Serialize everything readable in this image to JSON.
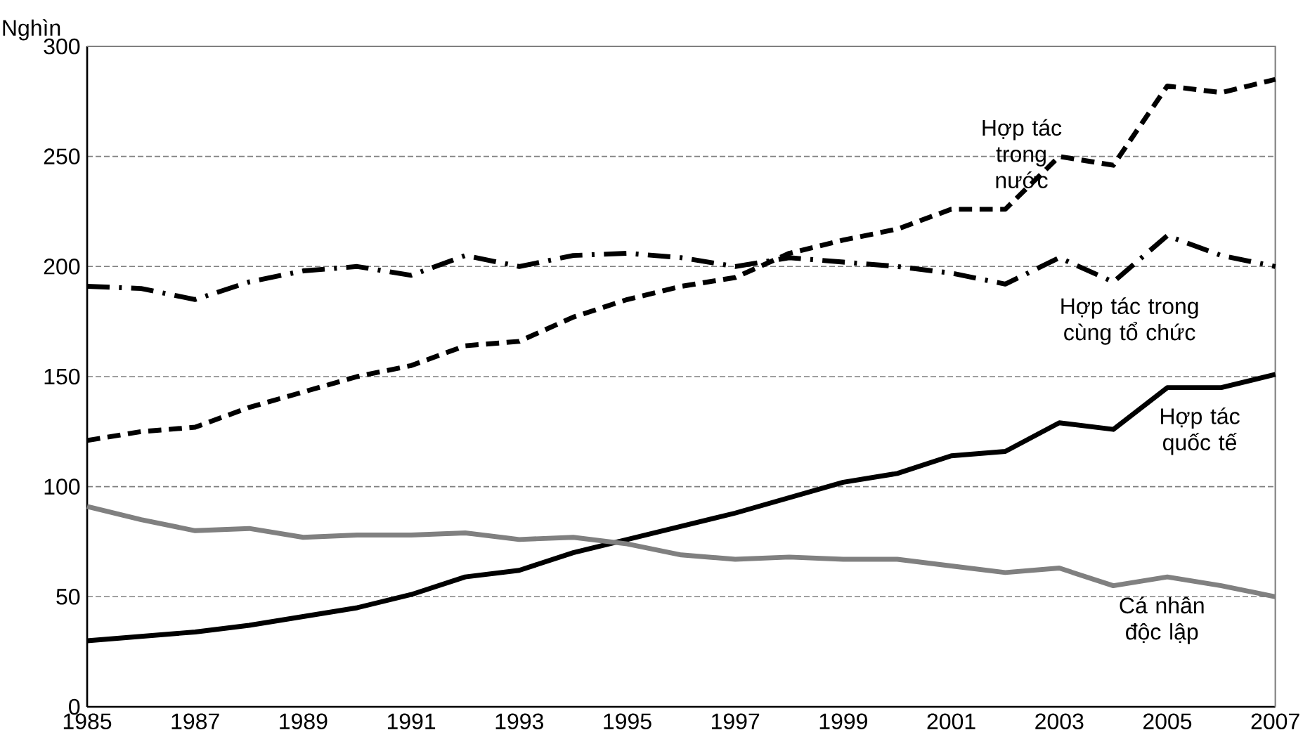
{
  "chart_data": {
    "type": "line",
    "ylabel": "Nghìn",
    "x": [
      1985,
      1986,
      1987,
      1988,
      1989,
      1990,
      1991,
      1992,
      1993,
      1994,
      1995,
      1996,
      1997,
      1998,
      1999,
      2000,
      2001,
      2002,
      2003,
      2004,
      2005,
      2006,
      2007
    ],
    "series": [
      {
        "name": "Hợp tác trong nước",
        "color": "#000000",
        "line_style": "dashed",
        "values": [
          121,
          125,
          127,
          136,
          143,
          150,
          155,
          164,
          166,
          177,
          185,
          191,
          195,
          206,
          212,
          217,
          226,
          226,
          250,
          246,
          282,
          279,
          285
        ]
      },
      {
        "name": "Hợp tác trong cùng tổ chức",
        "color": "#000000",
        "line_style": "dashdot",
        "values": [
          191,
          190,
          185,
          193,
          198,
          200,
          196,
          205,
          200,
          205,
          206,
          204,
          200,
          204,
          202,
          200,
          197,
          192,
          204,
          193,
          214,
          205,
          200
        ]
      },
      {
        "name": "Hợp tác quốc tế",
        "color": "#000000",
        "line_style": "solid",
        "values": [
          30,
          32,
          34,
          37,
          41,
          45,
          51,
          59,
          62,
          70,
          76,
          82,
          88,
          95,
          102,
          106,
          114,
          116,
          129,
          126,
          145,
          145,
          151
        ]
      },
      {
        "name": "Cá nhân độc lập",
        "color": "#808080",
        "line_style": "solid",
        "values": [
          91,
          85,
          80,
          81,
          77,
          78,
          78,
          79,
          76,
          77,
          74,
          69,
          67,
          68,
          67,
          67,
          64,
          61,
          63,
          55,
          59,
          55,
          50
        ]
      }
    ],
    "xlim": [
      1985,
      2007
    ],
    "xticks": [
      1985,
      1987,
      1989,
      1991,
      1993,
      1995,
      1997,
      1999,
      2001,
      2003,
      2005,
      2007
    ],
    "ylim": [
      0,
      300
    ],
    "yticks": [
      0,
      50,
      100,
      150,
      200,
      250,
      300
    ],
    "grid": "y",
    "legend": false,
    "marker": "none"
  }
}
